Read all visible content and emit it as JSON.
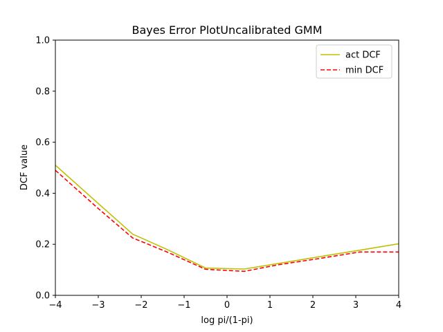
{
  "chart_data": {
    "type": "line",
    "title": "Bayes Error PlotUncalibrated GMM",
    "xlabel": "log pi/(1-pi)",
    "ylabel": "DCF value",
    "xlim": [
      -4,
      4
    ],
    "ylim": [
      0,
      1.0
    ],
    "xticks": [
      -4,
      -3,
      -2,
      -1,
      0,
      1,
      2,
      3,
      4
    ],
    "xtick_labels": [
      "−4",
      "−3",
      "−2",
      "−1",
      "0",
      "1",
      "2",
      "3",
      "4"
    ],
    "yticks": [
      0.0,
      0.2,
      0.4,
      0.6,
      0.8,
      1.0
    ],
    "ytick_labels": [
      "0.0",
      "0.2",
      "0.4",
      "0.6",
      "0.8",
      "1.0"
    ],
    "grid": false,
    "legend_position": "top-right",
    "x": [
      -4.0,
      -3.0,
      -2.2,
      -1.4,
      -0.5,
      0.4,
      1.2,
      2.1,
      3.1,
      4.0
    ],
    "series": [
      {
        "name": "act DCF",
        "color": "#bfbf00",
        "dash": "solid",
        "values": [
          0.51,
          0.36,
          0.24,
          0.18,
          0.107,
          0.103,
          0.125,
          0.15,
          0.177,
          0.202
        ]
      },
      {
        "name": "min DCF",
        "color": "#ff0000",
        "dash": "dashed",
        "values": [
          0.49,
          0.34,
          0.225,
          0.17,
          0.102,
          0.094,
          0.12,
          0.143,
          0.17,
          0.17
        ]
      }
    ]
  }
}
